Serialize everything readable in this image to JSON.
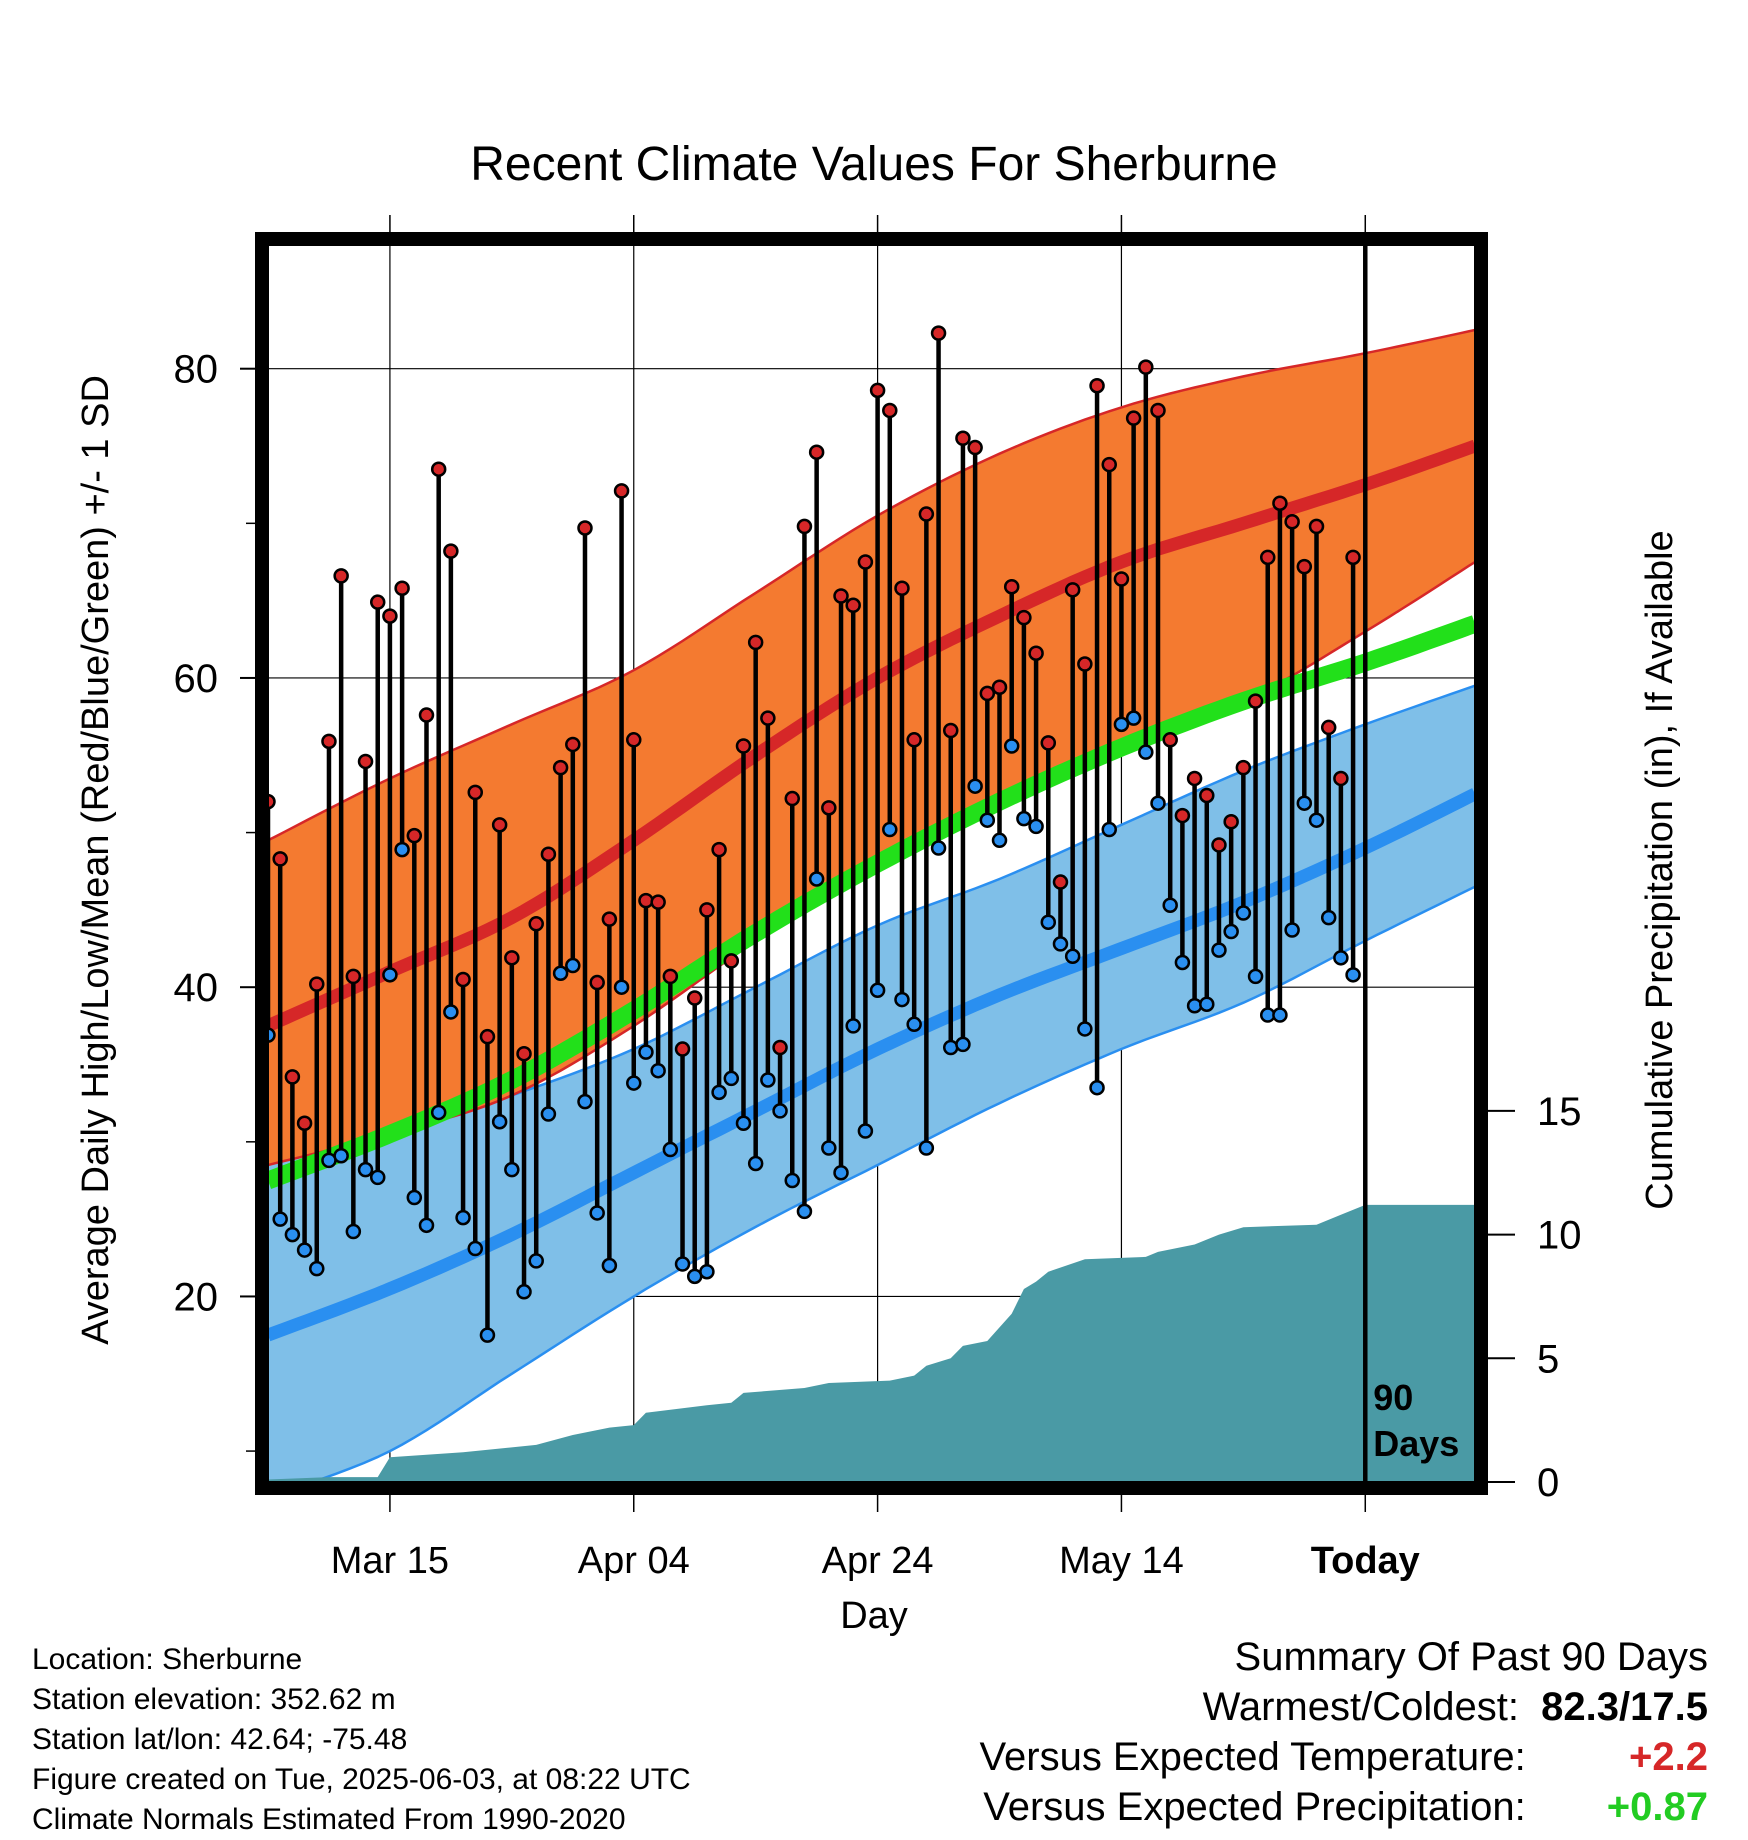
{
  "chart_data": {
    "type": "line",
    "title": "Recent Climate Values For Sherburne",
    "xlabel": "Day",
    "ylabel_left": "Average Daily High/Low/Mean (Red/Blue/Green) +/- 1 SD",
    "ylabel_right": "Cumulative Precipitation (in), If Available",
    "x_tick_labels": [
      "Mar 15",
      "Apr 04",
      "Apr 24",
      "May 14",
      "Today"
    ],
    "x_tick_days": [
      10,
      30,
      50,
      70,
      90
    ],
    "x_range_days": [
      0,
      99
    ],
    "y_left_ticks": [
      20,
      40,
      60,
      80
    ],
    "y_left_range": [
      8,
      88
    ],
    "y_right_ticks": [
      0,
      5,
      10,
      15
    ],
    "y_right_range": [
      0,
      50
    ],
    "today_day": 90,
    "today_label": "90 Days",
    "normals": {
      "high_mean": [
        [
          0,
          37.5
        ],
        [
          10,
          41
        ],
        [
          20,
          44.5
        ],
        [
          30,
          49.5
        ],
        [
          40,
          55
        ],
        [
          50,
          60
        ],
        [
          60,
          64
        ],
        [
          70,
          67.5
        ],
        [
          80,
          70
        ],
        [
          90,
          72.5
        ],
        [
          99,
          75
        ]
      ],
      "high_upper": [
        [
          0,
          49.5
        ],
        [
          10,
          53.5
        ],
        [
          20,
          57
        ],
        [
          30,
          60.5
        ],
        [
          40,
          65.5
        ],
        [
          50,
          70.5
        ],
        [
          60,
          74.5
        ],
        [
          70,
          77.5
        ],
        [
          80,
          79.5
        ],
        [
          90,
          81
        ],
        [
          99,
          82.5
        ]
      ],
      "high_lower": [
        [
          0,
          28.5
        ],
        [
          10,
          30.5
        ],
        [
          20,
          33
        ],
        [
          30,
          37.5
        ],
        [
          40,
          43
        ],
        [
          50,
          48
        ],
        [
          60,
          52
        ],
        [
          70,
          56
        ],
        [
          80,
          58.5
        ],
        [
          90,
          63
        ],
        [
          99,
          67.5
        ]
      ],
      "low_mean": [
        [
          0,
          17.5
        ],
        [
          10,
          20.5
        ],
        [
          20,
          24
        ],
        [
          30,
          28
        ],
        [
          40,
          32
        ],
        [
          50,
          36
        ],
        [
          60,
          39.5
        ],
        [
          70,
          42.5
        ],
        [
          80,
          45.5
        ],
        [
          90,
          49
        ],
        [
          99,
          52.5
        ]
      ],
      "low_upper": [
        [
          0,
          29
        ],
        [
          10,
          30.5
        ],
        [
          20,
          33
        ],
        [
          30,
          36
        ],
        [
          40,
          40
        ],
        [
          50,
          44
        ],
        [
          60,
          47
        ],
        [
          70,
          50.5
        ],
        [
          80,
          54
        ],
        [
          90,
          57
        ],
        [
          99,
          59.5
        ]
      ],
      "low_lower": [
        [
          0,
          7
        ],
        [
          10,
          10
        ],
        [
          20,
          15
        ],
        [
          30,
          20
        ],
        [
          40,
          24.5
        ],
        [
          50,
          28.5
        ],
        [
          60,
          32.5
        ],
        [
          70,
          36
        ],
        [
          80,
          39
        ],
        [
          90,
          43
        ],
        [
          99,
          46.5
        ]
      ],
      "mean": [
        [
          0,
          27.5
        ],
        [
          10,
          30.5
        ],
        [
          20,
          34
        ],
        [
          30,
          38.5
        ],
        [
          40,
          43.5
        ],
        [
          50,
          48
        ],
        [
          60,
          52
        ],
        [
          70,
          55.5
        ],
        [
          80,
          58.5
        ],
        [
          90,
          61
        ],
        [
          99,
          63.5
        ]
      ]
    },
    "daily": [
      {
        "day": 0,
        "high": 52.0,
        "low": 36.9
      },
      {
        "day": 1,
        "high": 48.3,
        "low": 25.0
      },
      {
        "day": 2,
        "high": 34.2,
        "low": 24.0
      },
      {
        "day": 3,
        "high": 31.2,
        "low": 23.0
      },
      {
        "day": 4,
        "high": 40.2,
        "low": 21.8
      },
      {
        "day": 5,
        "high": 55.9,
        "low": 28.8
      },
      {
        "day": 6,
        "high": 66.6,
        "low": 29.1
      },
      {
        "day": 7,
        "high": 40.7,
        "low": 24.2
      },
      {
        "day": 8,
        "high": 54.6,
        "low": 28.2
      },
      {
        "day": 9,
        "high": 64.9,
        "low": 27.7
      },
      {
        "day": 10,
        "high": 64.0,
        "low": 40.8
      },
      {
        "day": 11,
        "high": 65.8,
        "low": 48.9
      },
      {
        "day": 12,
        "high": 49.8,
        "low": 26.4
      },
      {
        "day": 13,
        "high": 57.6,
        "low": 24.6
      },
      {
        "day": 14,
        "high": 73.5,
        "low": 31.9
      },
      {
        "day": 15,
        "high": 68.2,
        "low": 38.4
      },
      {
        "day": 16,
        "high": 40.5,
        "low": 25.1
      },
      {
        "day": 17,
        "high": 52.6,
        "low": 23.1
      },
      {
        "day": 18,
        "high": 36.8,
        "low": 17.5
      },
      {
        "day": 19,
        "high": 50.5,
        "low": 31.3
      },
      {
        "day": 20,
        "high": 41.9,
        "low": 28.2
      },
      {
        "day": 21,
        "high": 35.7,
        "low": 20.3
      },
      {
        "day": 22,
        "high": 44.1,
        "low": 22.3
      },
      {
        "day": 23,
        "high": 48.6,
        "low": 31.8
      },
      {
        "day": 24,
        "high": 54.2,
        "low": 40.9
      },
      {
        "day": 25,
        "high": 55.7,
        "low": 41.4
      },
      {
        "day": 26,
        "high": 69.7,
        "low": 32.6
      },
      {
        "day": 27,
        "high": 40.3,
        "low": 25.4
      },
      {
        "day": 28,
        "high": 44.4,
        "low": 22.0
      },
      {
        "day": 29,
        "high": 72.1,
        "low": 40.0
      },
      {
        "day": 30,
        "high": 56.0,
        "low": 33.8
      },
      {
        "day": 31,
        "high": 45.6,
        "low": 35.8
      },
      {
        "day": 32,
        "high": 45.5,
        "low": 34.6
      },
      {
        "day": 33,
        "high": 40.7,
        "low": 29.5
      },
      {
        "day": 34,
        "high": 36.0,
        "low": 22.1
      },
      {
        "day": 35,
        "high": 39.3,
        "low": 21.3
      },
      {
        "day": 36,
        "high": 45.0,
        "low": 21.6
      },
      {
        "day": 37,
        "high": 48.9,
        "low": 33.2
      },
      {
        "day": 38,
        "high": 41.7,
        "low": 34.1
      },
      {
        "day": 39,
        "high": 55.6,
        "low": 31.2
      },
      {
        "day": 40,
        "high": 62.3,
        "low": 28.6
      },
      {
        "day": 41,
        "high": 57.4,
        "low": 34.0
      },
      {
        "day": 42,
        "high": 36.1,
        "low": 32.0
      },
      {
        "day": 43,
        "high": 52.2,
        "low": 27.5
      },
      {
        "day": 44,
        "high": 69.8,
        "low": 25.5
      },
      {
        "day": 45,
        "high": 74.6,
        "low": 47.0
      },
      {
        "day": 46,
        "high": 51.6,
        "low": 29.6
      },
      {
        "day": 47,
        "high": 65.3,
        "low": 28.0
      },
      {
        "day": 48,
        "high": 64.7,
        "low": 37.5
      },
      {
        "day": 49,
        "high": 67.5,
        "low": 30.7
      },
      {
        "day": 50,
        "high": 78.6,
        "low": 39.8
      },
      {
        "day": 51,
        "high": 77.3,
        "low": 50.2
      },
      {
        "day": 52,
        "high": 65.8,
        "low": 39.2
      },
      {
        "day": 53,
        "high": 56.0,
        "low": 37.6
      },
      {
        "day": 54,
        "high": 70.6,
        "low": 29.6
      },
      {
        "day": 55,
        "high": 82.3,
        "low": 49.0
      },
      {
        "day": 56,
        "high": 56.6,
        "low": 36.1
      },
      {
        "day": 57,
        "high": 75.5,
        "low": 36.3
      },
      {
        "day": 58,
        "high": 74.9,
        "low": 53.0
      },
      {
        "day": 59,
        "high": 59.0,
        "low": 50.8
      },
      {
        "day": 60,
        "high": 59.4,
        "low": 49.5
      },
      {
        "day": 61,
        "high": 65.9,
        "low": 55.6
      },
      {
        "day": 62,
        "high": 63.9,
        "low": 50.9
      },
      {
        "day": 63,
        "high": 61.6,
        "low": 50.4
      },
      {
        "day": 64,
        "high": 55.8,
        "low": 44.2
      },
      {
        "day": 65,
        "high": 46.8,
        "low": 42.8
      },
      {
        "day": 66,
        "high": 65.7,
        "low": 42.0
      },
      {
        "day": 67,
        "high": 60.9,
        "low": 37.3
      },
      {
        "day": 68,
        "high": 78.9,
        "low": 33.5
      },
      {
        "day": 69,
        "high": 73.8,
        "low": 50.2
      },
      {
        "day": 70,
        "high": 66.4,
        "low": 57.0
      },
      {
        "day": 71,
        "high": 76.8,
        "low": 57.4
      },
      {
        "day": 72,
        "high": 80.1,
        "low": 55.2
      },
      {
        "day": 73,
        "high": 77.3,
        "low": 51.9
      },
      {
        "day": 74,
        "high": 56.0,
        "low": 45.3
      },
      {
        "day": 75,
        "high": 51.1,
        "low": 41.6
      },
      {
        "day": 76,
        "high": 53.5,
        "low": 38.8
      },
      {
        "day": 77,
        "high": 52.4,
        "low": 38.9
      },
      {
        "day": 78,
        "high": 49.2,
        "low": 42.4
      },
      {
        "day": 79,
        "high": 50.7,
        "low": 43.6
      },
      {
        "day": 80,
        "high": 54.2,
        "low": 44.8
      },
      {
        "day": 81,
        "high": 58.5,
        "low": 40.7
      },
      {
        "day": 82,
        "high": 67.8,
        "low": 38.2
      },
      {
        "day": 83,
        "high": 71.3,
        "low": 38.2
      },
      {
        "day": 84,
        "high": 70.1,
        "low": 43.7
      },
      {
        "day": 85,
        "high": 67.2,
        "low": 51.9
      },
      {
        "day": 86,
        "high": 69.8,
        "low": 50.8
      },
      {
        "day": 87,
        "high": 56.8,
        "low": 44.5
      },
      {
        "day": 88,
        "high": 53.5,
        "low": 41.9
      },
      {
        "day": 89,
        "high": 67.8,
        "low": 40.8
      }
    ],
    "cumulative_precip": [
      [
        0,
        0.1
      ],
      [
        5,
        0.2
      ],
      [
        9,
        0.2
      ],
      [
        10,
        1.0
      ],
      [
        16,
        1.2
      ],
      [
        22,
        1.5
      ],
      [
        25,
        1.9
      ],
      [
        28,
        2.2
      ],
      [
        30,
        2.3
      ],
      [
        31,
        2.8
      ],
      [
        36,
        3.1
      ],
      [
        38,
        3.2
      ],
      [
        39,
        3.6
      ],
      [
        44,
        3.8
      ],
      [
        46,
        4.0
      ],
      [
        51,
        4.1
      ],
      [
        53,
        4.3
      ],
      [
        54,
        4.7
      ],
      [
        56,
        5.0
      ],
      [
        57,
        5.5
      ],
      [
        59,
        5.7
      ],
      [
        61,
        6.8
      ],
      [
        62,
        7.8
      ],
      [
        63,
        8.1
      ],
      [
        64,
        8.5
      ],
      [
        67,
        9.0
      ],
      [
        72,
        9.1
      ],
      [
        73,
        9.3
      ],
      [
        76,
        9.6
      ],
      [
        78,
        10.0
      ],
      [
        80,
        10.3
      ],
      [
        86,
        10.4
      ],
      [
        88,
        10.8
      ],
      [
        90,
        11.2
      ],
      [
        99,
        11.2
      ]
    ]
  },
  "footer": {
    "location": "Location: Sherburne",
    "elevation": "Station elevation: 352.62 m",
    "latlon": "Station lat/lon: 42.64; -75.48",
    "created": "Figure created on Tue, 2025-06-03, at 08:22 UTC",
    "normals": "Climate Normals Estimated From 1990-2020"
  },
  "summary": {
    "title": "Summary Of Past 90 Days",
    "warm_label": "Warmest/Coldest:",
    "warm_value": "82.3/17.5",
    "temp_label": "Versus Expected Temperature:",
    "temp_value": "+2.2",
    "precip_label": "Versus Expected Precipitation:",
    "precip_value": "+0.87"
  },
  "colors": {
    "high_band": "#f47a30",
    "high_line": "#d62728",
    "low_band": "#7fbfe8",
    "low_line": "#2a8ff0",
    "mean_line": "#22e01a",
    "precip_fill": "#4a9aa5",
    "high_dot": "#d62728",
    "low_dot": "#2a8ff0"
  }
}
